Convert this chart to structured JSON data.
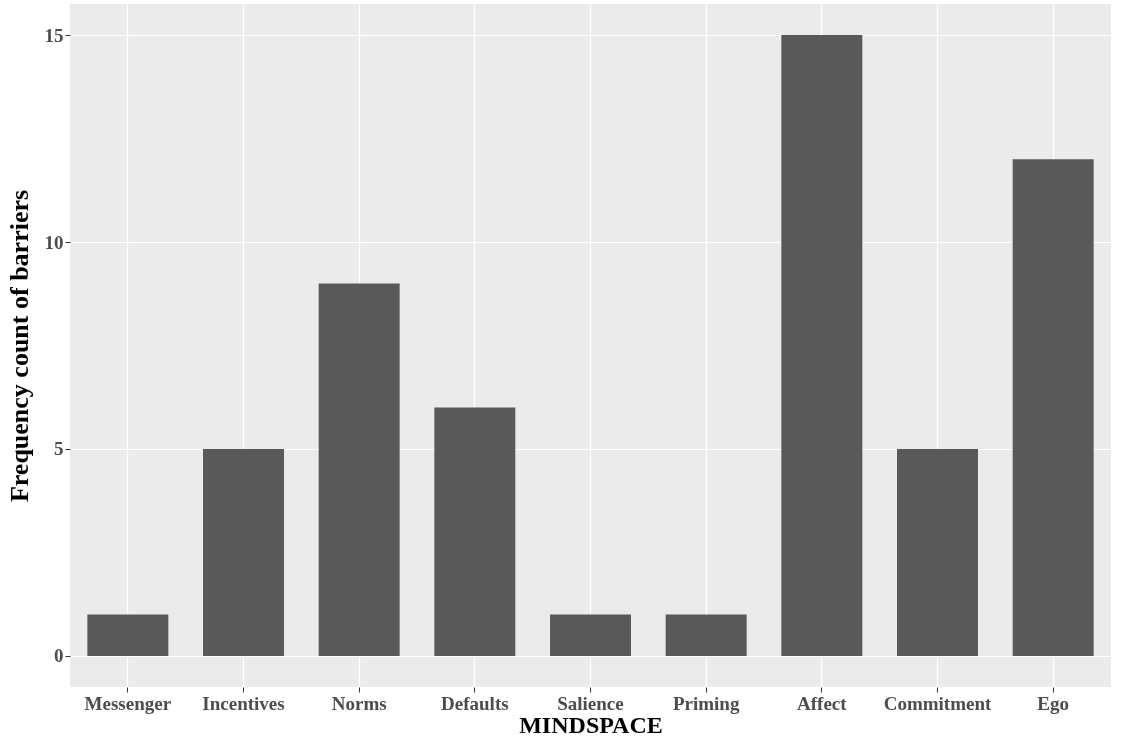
{
  "chart_data": {
    "type": "bar",
    "xlabel": "MINDSPACE",
    "ylabel": "Frequency count of barriers",
    "categories": [
      "Messenger",
      "Incentives",
      "Norms",
      "Defaults",
      "Salience",
      "Priming",
      "Affect",
      "Commitment",
      "Ego"
    ],
    "values": [
      1,
      5,
      9,
      6,
      1,
      1,
      15,
      5,
      12
    ],
    "color": "#595959",
    "ylim": [
      -0.75,
      15.75
    ],
    "yticks": [
      0,
      5,
      10,
      15
    ],
    "grid": true
  }
}
